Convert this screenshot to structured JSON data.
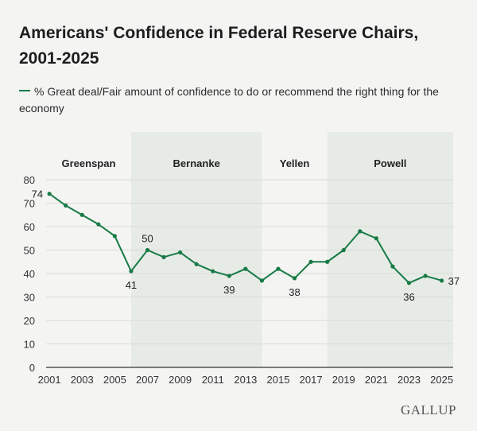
{
  "title": "Americans' Confidence in Federal Reserve Chairs, 2001-2025",
  "legend_label": "% Great deal/Fair amount of confidence to do or recommend the right thing for the economy",
  "brand": "GALLUP",
  "colors": {
    "line": "#177a45",
    "band": "#e6ebe6",
    "grid": "#d9dcd8",
    "axis": "#333333"
  },
  "chart_data": {
    "type": "line",
    "title": "Americans' Confidence in Federal Reserve Chairs, 2001-2025",
    "xlabel": "",
    "ylabel": "",
    "ylim": [
      0,
      80
    ],
    "xlim": [
      2000.8,
      2025.7
    ],
    "y_ticks": [
      0,
      10,
      20,
      30,
      40,
      50,
      60,
      70,
      80
    ],
    "x_ticks": [
      2001,
      2003,
      2005,
      2007,
      2009,
      2011,
      2013,
      2015,
      2017,
      2019,
      2021,
      2023,
      2025
    ],
    "series": [
      {
        "name": "% Great deal/Fair amount of confidence to do or recommend the right thing for the economy",
        "points": [
          {
            "x": 2001,
            "y": 74
          },
          {
            "x": 2002,
            "y": 69
          },
          {
            "x": 2003,
            "y": 65
          },
          {
            "x": 2004,
            "y": 61
          },
          {
            "x": 2005,
            "y": 56
          },
          {
            "x": 2006,
            "y": 41
          },
          {
            "x": 2007,
            "y": 50
          },
          {
            "x": 2008,
            "y": 47
          },
          {
            "x": 2009,
            "y": 49
          },
          {
            "x": 2010,
            "y": 44
          },
          {
            "x": 2011,
            "y": 41
          },
          {
            "x": 2012,
            "y": 39
          },
          {
            "x": 2013,
            "y": 42
          },
          {
            "x": 2014,
            "y": 37
          },
          {
            "x": 2015,
            "y": 42
          },
          {
            "x": 2016,
            "y": 38
          },
          {
            "x": 2017,
            "y": 45
          },
          {
            "x": 2018,
            "y": 45
          },
          {
            "x": 2019,
            "y": 50
          },
          {
            "x": 2020,
            "y": 58
          },
          {
            "x": 2021,
            "y": 55
          },
          {
            "x": 2022,
            "y": 43
          },
          {
            "x": 2023,
            "y": 36
          },
          {
            "x": 2024,
            "y": 39
          },
          {
            "x": 2025,
            "y": 37
          }
        ]
      }
    ],
    "data_labels": [
      {
        "x": 2001,
        "y": 74,
        "text": "74",
        "placement": "left"
      },
      {
        "x": 2006,
        "y": 41,
        "text": "41",
        "placement": "below"
      },
      {
        "x": 2007,
        "y": 50,
        "text": "50",
        "placement": "above"
      },
      {
        "x": 2012,
        "y": 39,
        "text": "39",
        "placement": "below"
      },
      {
        "x": 2016,
        "y": 38,
        "text": "38",
        "placement": "below"
      },
      {
        "x": 2023,
        "y": 36,
        "text": "36",
        "placement": "below"
      },
      {
        "x": 2025,
        "y": 37,
        "text": "37",
        "placement": "right"
      }
    ],
    "chair_periods": [
      {
        "name": "Greenspan",
        "start": 2000.8,
        "end": 2006.0,
        "shaded": false
      },
      {
        "name": "Bernanke",
        "start": 2006.0,
        "end": 2014.0,
        "shaded": true
      },
      {
        "name": "Yellen",
        "start": 2014.0,
        "end": 2018.0,
        "shaded": false
      },
      {
        "name": "Powell",
        "start": 2018.0,
        "end": 2025.7,
        "shaded": true
      }
    ]
  }
}
